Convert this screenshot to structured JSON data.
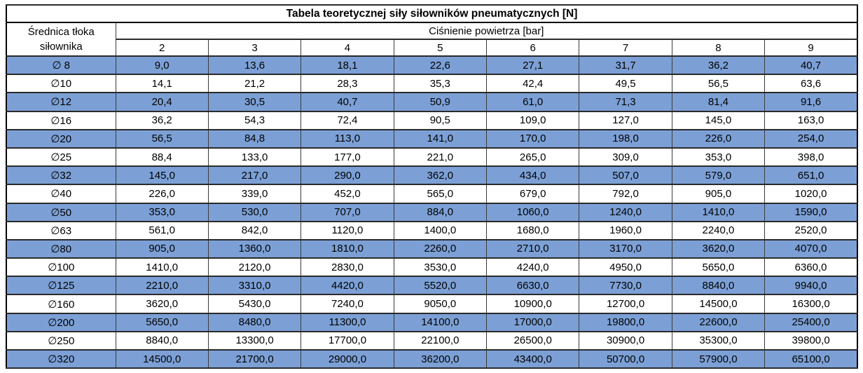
{
  "table": {
    "title": "Tabela teoretycznej siły siłowników pneumatycznych [N]",
    "row_header": "Średnica tłoka siłownika",
    "col_group_header": "Ciśnienie powietrza [bar]",
    "pressure_columns": [
      "2",
      "3",
      "4",
      "5",
      "6",
      "7",
      "8",
      "9"
    ],
    "rows": [
      {
        "diameter": "∅ 8",
        "values": [
          "9,0",
          "13,6",
          "18,1",
          "22,6",
          "27,1",
          "31,7",
          "36,2",
          "40,7"
        ]
      },
      {
        "diameter": "∅10",
        "values": [
          "14,1",
          "21,2",
          "28,3",
          "35,3",
          "42,4",
          "49,5",
          "56,5",
          "63,6"
        ]
      },
      {
        "diameter": "∅12",
        "values": [
          "20,4",
          "30,5",
          "40,7",
          "50,9",
          "61,0",
          "71,3",
          "81,4",
          "91,6"
        ]
      },
      {
        "diameter": "∅16",
        "values": [
          "36,2",
          "54,3",
          "72,4",
          "90,5",
          "109,0",
          "127,0",
          "145,0",
          "163,0"
        ]
      },
      {
        "diameter": "∅20",
        "values": [
          "56,5",
          "84,8",
          "113,0",
          "141,0",
          "170,0",
          "198,0",
          "226,0",
          "254,0"
        ]
      },
      {
        "diameter": "∅25",
        "values": [
          "88,4",
          "133,0",
          "177,0",
          "221,0",
          "265,0",
          "309,0",
          "353,0",
          "398,0"
        ]
      },
      {
        "diameter": "∅32",
        "values": [
          "145,0",
          "217,0",
          "290,0",
          "362,0",
          "434,0",
          "507,0",
          "579,0",
          "651,0"
        ]
      },
      {
        "diameter": "∅40",
        "values": [
          "226,0",
          "339,0",
          "452,0",
          "565,0",
          "679,0",
          "792,0",
          "905,0",
          "1020,0"
        ]
      },
      {
        "diameter": "∅50",
        "values": [
          "353,0",
          "530,0",
          "707,0",
          "884,0",
          "1060,0",
          "1240,0",
          "1410,0",
          "1590,0"
        ]
      },
      {
        "diameter": "∅63",
        "values": [
          "561,0",
          "842,0",
          "1120,0",
          "1400,0",
          "1680,0",
          "1960,0",
          "2240,0",
          "2520,0"
        ]
      },
      {
        "diameter": "∅80",
        "values": [
          "905,0",
          "1360,0",
          "1810,0",
          "2260,0",
          "2710,0",
          "3170,0",
          "3620,0",
          "4070,0"
        ]
      },
      {
        "diameter": "∅100",
        "values": [
          "1410,0",
          "2120,0",
          "2830,0",
          "3530,0",
          "4240,0",
          "4950,0",
          "5650,0",
          "6360,0"
        ]
      },
      {
        "diameter": "∅125",
        "values": [
          "2210,0",
          "3310,0",
          "4420,0",
          "5520,0",
          "6630,0",
          "7730,0",
          "8840,0",
          "9940,0"
        ]
      },
      {
        "diameter": "∅160",
        "values": [
          "3620,0",
          "5430,0",
          "7240,0",
          "9050,0",
          "10900,0",
          "12700,0",
          "14500,0",
          "16300,0"
        ]
      },
      {
        "diameter": "∅200",
        "values": [
          "5650,0",
          "8480,0",
          "11300,0",
          "14100,0",
          "17000,0",
          "19800,0",
          "22600,0",
          "25400,0"
        ]
      },
      {
        "diameter": "∅250",
        "values": [
          "8840,0",
          "13300,0",
          "17700,0",
          "22100,0",
          "26500,0",
          "30900,0",
          "35300,0",
          "39800,0"
        ]
      },
      {
        "diameter": "∅320",
        "values": [
          "14500,0",
          "21700,0",
          "29000,0",
          "36200,0",
          "43400,0",
          "50700,0",
          "57900,0",
          "65100,0"
        ]
      }
    ]
  },
  "colors": {
    "row_highlight": "#7ca0d6",
    "border": "#000000",
    "text": "#000000",
    "background": "#ffffff"
  }
}
